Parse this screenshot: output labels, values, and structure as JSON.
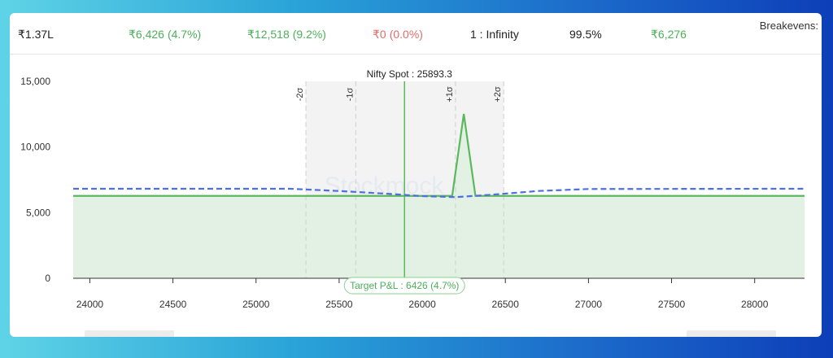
{
  "stats": [
    {
      "main": "₹1.37L",
      "pct": "",
      "tone": "black"
    },
    {
      "main": "₹6,426",
      "pct": "(4.7%)",
      "tone": "green"
    },
    {
      "main": "₹12,518",
      "pct": "(9.2%)",
      "tone": "green"
    },
    {
      "main": "₹0",
      "pct": "(0.0%)",
      "tone": "red"
    },
    {
      "main": "1 : Infinity",
      "pct": "",
      "tone": "black"
    },
    {
      "main": "99.5%",
      "pct": "",
      "tone": "black"
    },
    {
      "main": "₹6,276",
      "pct": "",
      "tone": "green"
    }
  ],
  "breakevens_label": "Breakevens:",
  "watermark": "Stockmock",
  "chart_data": {
    "type": "line",
    "x_ticks": [
      24000,
      24500,
      25000,
      25500,
      26000,
      26500,
      27000,
      27500,
      28000
    ],
    "y_ticks": [
      0,
      5000,
      10000,
      15000
    ],
    "y_tick_labels": [
      "0",
      "5,000",
      "10,000",
      "15,000"
    ],
    "x_tick_labels": [
      "24000",
      "24500",
      "25000",
      "25500",
      "26000",
      "26500",
      "27000",
      "27500",
      "28000"
    ],
    "xlim": [
      23900,
      28300
    ],
    "ylim": [
      0,
      15000
    ],
    "spot": {
      "label": "Nifty Spot : 25893.3",
      "value": 25893.3
    },
    "sigma_lines": [
      {
        "label": "-2σ",
        "value": 25300
      },
      {
        "label": "-1σ",
        "value": 25600
      },
      {
        "label": "+1σ",
        "value": 26200
      },
      {
        "label": "+2σ",
        "value": 26490
      }
    ],
    "target_label": "Target P&L : 6426 (4.7%)",
    "series": [
      {
        "kind": "expiry",
        "color": "#5cb85c",
        "points": [
          [
            23900,
            6276
          ],
          [
            26180,
            6276
          ],
          [
            26250,
            12518
          ],
          [
            26320,
            6276
          ],
          [
            28300,
            6276
          ]
        ]
      },
      {
        "kind": "target",
        "color": "#4d6fe0",
        "points": [
          [
            23900,
            6820
          ],
          [
            25200,
            6820
          ],
          [
            25500,
            6650
          ],
          [
            25800,
            6430
          ],
          [
            26000,
            6260
          ],
          [
            26200,
            6180
          ],
          [
            26400,
            6350
          ],
          [
            26700,
            6650
          ],
          [
            27000,
            6800
          ],
          [
            28300,
            6820
          ]
        ]
      }
    ]
  },
  "colors": {
    "green": "#5cb85c",
    "green_fill": "#e2f1e3",
    "blue": "#4d6fe0",
    "sigma_band": "#f3f3f3",
    "axis": "#333333"
  }
}
